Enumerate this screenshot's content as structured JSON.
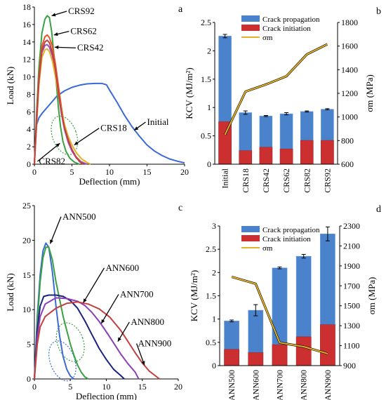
{
  "chart_data": [
    {
      "id": "a",
      "type": "line",
      "panel_letter": "a",
      "xlabel": "Deflection (mm)",
      "ylabel": "Load (kN)",
      "xlim": [
        0,
        20
      ],
      "ylim": [
        0,
        18
      ],
      "x_ticks": [
        0,
        5,
        10,
        15,
        20
      ],
      "y_ticks": [
        0,
        2,
        4,
        6,
        8,
        10,
        12,
        14,
        16,
        18
      ],
      "series": [
        {
          "name": "Initial",
          "color": "#3c6ad4",
          "points": [
            [
              0,
              0
            ],
            [
              0.3,
              4.5
            ],
            [
              0.6,
              5.3
            ],
            [
              1,
              5.8
            ],
            [
              2,
              6.8
            ],
            [
              3,
              7.8
            ],
            [
              4,
              8.4
            ],
            [
              5,
              8.8
            ],
            [
              6,
              9.05
            ],
            [
              7,
              9.2
            ],
            [
              8,
              9.25
            ],
            [
              9,
              9.25
            ],
            [
              9.6,
              9.1
            ],
            [
              10,
              8.5
            ],
            [
              11,
              7.1
            ],
            [
              12,
              5.6
            ],
            [
              13,
              4.3
            ],
            [
              14,
              3.2
            ],
            [
              15,
              2.2
            ],
            [
              16,
              1.5
            ],
            [
              17,
              1.0
            ],
            [
              18,
              0.6
            ],
            [
              19,
              0.35
            ],
            [
              20,
              0.15
            ]
          ]
        },
        {
          "name": "CRS92",
          "color": "#3aa142",
          "points": [
            [
              0,
              0
            ],
            [
              0.3,
              6
            ],
            [
              0.6,
              11
            ],
            [
              1,
              15
            ],
            [
              1.4,
              16.6
            ],
            [
              1.7,
              17.0
            ],
            [
              2,
              16.8
            ],
            [
              2.3,
              15.2
            ],
            [
              2.6,
              12.5
            ],
            [
              2.9,
              9.5
            ],
            [
              3.2,
              6.5
            ],
            [
              3.5,
              4.2
            ],
            [
              3.8,
              2.6
            ],
            [
              4.2,
              1.5
            ],
            [
              4.7,
              0.7
            ],
            [
              5.3,
              0.25
            ],
            [
              6,
              0
            ]
          ]
        },
        {
          "name": "CRS62",
          "color": "#e0592c",
          "points": [
            [
              0,
              0
            ],
            [
              0.3,
              5.5
            ],
            [
              0.6,
              10
            ],
            [
              1,
              13.5
            ],
            [
              1.4,
              14.6
            ],
            [
              1.7,
              14.8
            ],
            [
              2,
              14.5
            ],
            [
              2.4,
              13.5
            ],
            [
              2.8,
              11.5
            ],
            [
              3.2,
              9
            ],
            [
              3.6,
              6.5
            ],
            [
              4,
              4.5
            ],
            [
              4.4,
              3.0
            ],
            [
              4.9,
              1.8
            ],
            [
              5.5,
              0.9
            ],
            [
              6.2,
              0.3
            ],
            [
              7,
              0
            ]
          ]
        },
        {
          "name": "CRS42",
          "color": "#9a4fb5",
          "points": [
            [
              0,
              0
            ],
            [
              0.3,
              5
            ],
            [
              0.6,
              9.5
            ],
            [
              1,
              12.8
            ],
            [
              1.4,
              13.6
            ],
            [
              1.7,
              13.7
            ],
            [
              2,
              13.4
            ],
            [
              2.4,
              12.4
            ],
            [
              2.8,
              10.5
            ],
            [
              3.2,
              8
            ],
            [
              3.6,
              5.8
            ],
            [
              4,
              4
            ],
            [
              4.5,
              2.5
            ],
            [
              5,
              1.5
            ],
            [
              5.6,
              0.7
            ],
            [
              6.3,
              0.2
            ],
            [
              7,
              0
            ]
          ]
        },
        {
          "name": "CRS18",
          "color": "#e3b22a",
          "points": [
            [
              0,
              0
            ],
            [
              0.3,
              4.5
            ],
            [
              0.6,
              9
            ],
            [
              1,
              12.2
            ],
            [
              1.4,
              13.1
            ],
            [
              1.7,
              13.2
            ],
            [
              2,
              12.9
            ],
            [
              2.4,
              11.8
            ],
            [
              2.8,
              10
            ],
            [
              3.2,
              8
            ],
            [
              3.6,
              6.2
            ],
            [
              4,
              4.6
            ],
            [
              4.5,
              3.2
            ],
            [
              5,
              2.2
            ],
            [
              5.6,
              1.3
            ],
            [
              6.3,
              0.6
            ],
            [
              7,
              0.2
            ],
            [
              7.5,
              0
            ]
          ]
        },
        {
          "name": "CRS82",
          "color": "#c2403f",
          "points": [
            [
              0,
              0
            ],
            [
              0.3,
              5
            ],
            [
              0.6,
              9.5
            ],
            [
              1,
              13
            ],
            [
              1.4,
              14
            ],
            [
              1.7,
              14.2
            ],
            [
              2,
              13.9
            ],
            [
              2.4,
              12.8
            ],
            [
              2.8,
              10.8
            ],
            [
              3.2,
              8.2
            ],
            [
              3.6,
              6
            ],
            [
              4,
              4.2
            ],
            [
              4.5,
              2.8
            ],
            [
              5,
              1.7
            ],
            [
              5.5,
              0.9
            ],
            [
              6,
              0.3
            ],
            [
              6.5,
              0
            ]
          ]
        }
      ],
      "annotations": [
        {
          "text": "CRS92",
          "x": 4.5,
          "y": 17.2,
          "target": [
            2.3,
            17.0
          ]
        },
        {
          "text": "CRS62",
          "x": 4.8,
          "y": 14.9,
          "target": [
            2.6,
            14.8
          ]
        },
        {
          "text": "CRS42",
          "x": 5.7,
          "y": 13.0,
          "target": [
            2.7,
            13.4
          ]
        },
        {
          "text": "CRS18",
          "x": 8.8,
          "y": 3.8,
          "target": [
            5.3,
            2.2
          ]
        },
        {
          "text": "CRS82",
          "x": 0.6,
          "y": 0.0,
          "target": [
            3.4,
            2.4
          ]
        },
        {
          "text": "Initial",
          "x": 15.0,
          "y": 4.5,
          "target": [
            13.3,
            3.9
          ]
        }
      ],
      "ellipse": {
        "cx": 4.0,
        "cy": 3.3,
        "rx": 1.6,
        "ry": 2.3
      }
    },
    {
      "id": "b",
      "type": "bar",
      "panel_letter": "b",
      "categories": [
        "Initial",
        "CRS18",
        "CRS42",
        "CRS62",
        "CRS82",
        "CRS92"
      ],
      "ylabel": "KCV (MJ/m²)",
      "y2label": "σm (MPa)",
      "ylim": [
        0,
        2.5
      ],
      "y2lim": [
        600,
        1800
      ],
      "y_ticks": [
        0,
        0.5,
        1,
        1.5,
        2,
        2.5
      ],
      "y2_ticks": [
        600,
        800,
        1000,
        1200,
        1400,
        1600,
        1800
      ],
      "legend": [
        "Crack propagation",
        "Crack initiation",
        "σm"
      ],
      "series": [
        {
          "name": "Crack propagation",
          "color": "#4a82cc",
          "values": [
            2.26,
            0.91,
            0.85,
            0.89,
            0.93,
            0.97
          ],
          "errors": [
            0.03,
            0.03,
            0.01,
            0.02,
            0.01,
            0.01
          ]
        },
        {
          "name": "Crack initiation",
          "color": "#cc2f2f",
          "values": [
            0.75,
            0.24,
            0.3,
            0.27,
            0.42,
            0.42
          ]
        },
        {
          "name": "σm",
          "color": "#e3b22a",
          "values": [
            850,
            1215,
            1275,
            1345,
            1530,
            1615
          ]
        }
      ]
    },
    {
      "id": "c",
      "type": "line",
      "panel_letter": "c",
      "xlabel": "Deflection (mm)",
      "ylabel": "Load (kN)",
      "xlim": [
        0,
        20
      ],
      "ylim": [
        0,
        25
      ],
      "x_ticks": [
        0,
        5,
        10,
        15,
        20
      ],
      "y_ticks": [
        0,
        5,
        10,
        15,
        20,
        25
      ],
      "series": [
        {
          "name": "ANN500",
          "color": "#3c6ad4",
          "points": [
            [
              0,
              0
            ],
            [
              0.4,
              9
            ],
            [
              0.8,
              15
            ],
            [
              1.2,
              18.5
            ],
            [
              1.6,
              19.6
            ],
            [
              2,
              19
            ],
            [
              2.5,
              15.5
            ],
            [
              3,
              10.5
            ],
            [
              3.5,
              6.2
            ],
            [
              4,
              3.2
            ],
            [
              4.5,
              1.4
            ],
            [
              5,
              0.4
            ],
            [
              5.5,
              0
            ]
          ]
        },
        {
          "name": "ANN600",
          "color": "#3aa142",
          "points": [
            [
              0,
              0
            ],
            [
              0.4,
              8
            ],
            [
              0.8,
              14
            ],
            [
              1.2,
              17.5
            ],
            [
              1.6,
              19.0
            ],
            [
              2,
              19.0
            ],
            [
              2.5,
              17.2
            ],
            [
              3,
              14
            ],
            [
              3.5,
              11.5
            ],
            [
              4,
              9
            ],
            [
              4.5,
              7
            ],
            [
              5,
              5
            ],
            [
              5.5,
              3.4
            ],
            [
              6,
              2
            ],
            [
              6.5,
              1
            ],
            [
              7,
              0.3
            ],
            [
              7.5,
              0
            ]
          ]
        },
        {
          "name": "ANN700",
          "color": "#1a237e",
          "points": [
            [
              0,
              0
            ],
            [
              0.4,
              7
            ],
            [
              0.8,
              10.5
            ],
            [
              1.3,
              11.9
            ],
            [
              2,
              12.1
            ],
            [
              3,
              12.1
            ],
            [
              4,
              11.9
            ],
            [
              5,
              11.3
            ],
            [
              6,
              10.2
            ],
            [
              7,
              8.4
            ],
            [
              8,
              6.4
            ],
            [
              9,
              4.4
            ],
            [
              10,
              2.8
            ],
            [
              11,
              1.4
            ],
            [
              12,
              0.5
            ],
            [
              12.5,
              0
            ]
          ]
        },
        {
          "name": "ANN800",
          "color": "#8d3fb5",
          "points": [
            [
              0,
              0
            ],
            [
              0.4,
              6
            ],
            [
              0.8,
              9
            ],
            [
              1.5,
              10.8
            ],
            [
              3,
              11.7
            ],
            [
              4.5,
              11.6
            ],
            [
              6,
              11.2
            ],
            [
              7,
              10.6
            ],
            [
              8,
              9.6
            ],
            [
              9,
              8.3
            ],
            [
              10,
              6.8
            ],
            [
              11,
              5.2
            ],
            [
              12,
              3.6
            ],
            [
              13,
              2.2
            ],
            [
              14,
              1.0
            ],
            [
              14.5,
              0
            ]
          ]
        },
        {
          "name": "ANN900",
          "color": "#c2403f",
          "points": [
            [
              0,
              0
            ],
            [
              0.4,
              5
            ],
            [
              0.8,
              7.5
            ],
            [
              1.5,
              9
            ],
            [
              3,
              10.2
            ],
            [
              4.5,
              10.9
            ],
            [
              6,
              11.1
            ],
            [
              7.5,
              10.8
            ],
            [
              9,
              10.1
            ],
            [
              10.5,
              8.9
            ],
            [
              12,
              7.0
            ],
            [
              13,
              5.4
            ],
            [
              14,
              3.8
            ],
            [
              15,
              2.3
            ],
            [
              16,
              1.1
            ],
            [
              17,
              0.3
            ],
            [
              17.4,
              0
            ]
          ]
        }
      ],
      "annotations": [
        {
          "text": "ANN500",
          "x": 3.9,
          "y": 23.0,
          "target": [
            2.2,
            19.5
          ]
        },
        {
          "text": "ANN600",
          "x": 9.9,
          "y": 15.6,
          "target": [
            6.8,
            11.0
          ]
        },
        {
          "text": "ANN700",
          "x": 11.9,
          "y": 11.8,
          "target": [
            9.3,
            8.0
          ]
        },
        {
          "text": "ANN800",
          "x": 13.4,
          "y": 7.8,
          "target": [
            11.6,
            5.4
          ]
        },
        {
          "text": "ANN900",
          "x": 14.4,
          "y": 4.7,
          "target": [
            15.3,
            2.0
          ]
        }
      ],
      "ellipses": [
        {
          "cx": 3.9,
          "cy": 2.6,
          "rx": 1.7,
          "ry": 3.0
        },
        {
          "cx": 5.0,
          "cy": 5.3,
          "rx": 1.8,
          "ry": 2.9
        }
      ]
    },
    {
      "id": "d",
      "type": "bar",
      "panel_letter": "d",
      "categories": [
        "ANN500",
        "ANN600",
        "ANN700",
        "ANN800",
        "ANN900"
      ],
      "ylabel": "KCV (MJ/m²)",
      "y2label": "σm (MPa)",
      "ylim": [
        0,
        3
      ],
      "y2lim": [
        900,
        2300
      ],
      "y_ticks": [
        0,
        0.5,
        1,
        1.5,
        2,
        2.5,
        3
      ],
      "y2_ticks": [
        900,
        1100,
        1300,
        1500,
        1700,
        1900,
        2100,
        2300
      ],
      "legend": [
        "Crack propagation",
        "Crack initiation",
        "σm"
      ],
      "series": [
        {
          "name": "Crack propagation",
          "color": "#4a82cc",
          "values": [
            0.96,
            1.19,
            2.1,
            2.35,
            2.83
          ],
          "errors": [
            0.02,
            0.12,
            0.02,
            0.04,
            0.15
          ]
        },
        {
          "name": "Crack initiation",
          "color": "#cc2f2f",
          "values": [
            0.35,
            0.28,
            0.45,
            0.62,
            0.88
          ]
        },
        {
          "name": "σm",
          "color": "#e3b22a",
          "values": [
            1790,
            1720,
            1130,
            1090,
            1020
          ]
        }
      ]
    }
  ]
}
